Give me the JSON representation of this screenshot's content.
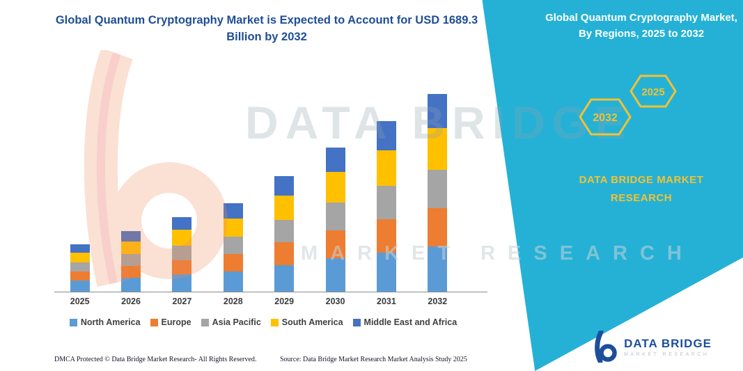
{
  "header": {
    "left_title": "Global Quantum Cryptography Market is Expected to Account for USD 1689.3 Billion by 2032"
  },
  "right_panel": {
    "title": "Global Quantum Cryptography Market, By Regions, 2025 to 2032",
    "hexagon_back_label": "2032",
    "hexagon_front_label": "2025",
    "brand_line1": "DATA BRIDGE MARKET",
    "brand_line2": "RESEARCH"
  },
  "chart_data": {
    "type": "bar",
    "stacked": true,
    "title": "Global Quantum Cryptography Market is Expected to Account for USD 1689.3 Billion by 2032",
    "unit": "USD Billion",
    "categories": [
      "2025",
      "2026",
      "2027",
      "2028",
      "2029",
      "2030",
      "2031",
      "2032"
    ],
    "series": [
      {
        "name": "North America",
        "color": "#5B9BD5",
        "values": [
          93,
          119,
          147,
          174,
          227,
          283,
          335,
          387
        ]
      },
      {
        "name": "Europe",
        "color": "#ED7D31",
        "values": [
          79,
          101,
          124,
          147,
          193,
          240,
          284,
          327
        ]
      },
      {
        "name": "Asia Pacific",
        "color": "#A5A5A5",
        "values": [
          79,
          101,
          124,
          147,
          193,
          240,
          284,
          327
        ]
      },
      {
        "name": "South America",
        "color": "#FFC000",
        "values": [
          85,
          109,
          134,
          159,
          207,
          259,
          306,
          357
        ]
      },
      {
        "name": "Middle East and Africa",
        "color": "#4472C4",
        "values": [
          69,
          87,
          108,
          128,
          168,
          209,
          249,
          291.3
        ]
      }
    ],
    "total_2032": 1689.3,
    "y_axis_visible": false,
    "grid": false,
    "legend_position": "bottom"
  },
  "watermark": {
    "big_text": "DATA BRIDGE",
    "row_text": "MARKET RESEARCH"
  },
  "footer": {
    "dmca": "DMCA Protected © Data Bridge Market Research-  All Rights Reserved.",
    "source": "Source: Data Bridge Market Research  Market Analysis Study 2025"
  },
  "logo": {
    "name": "DATA BRIDGE",
    "subtitle": "MARKET RESEARCH"
  },
  "colors": {
    "teal": "#25B1D6",
    "title_blue": "#1F4E96",
    "accent_yellow": "#F2C233",
    "logo_blue": "#1C4E9B",
    "axis_gray": "#8a8a8a"
  }
}
